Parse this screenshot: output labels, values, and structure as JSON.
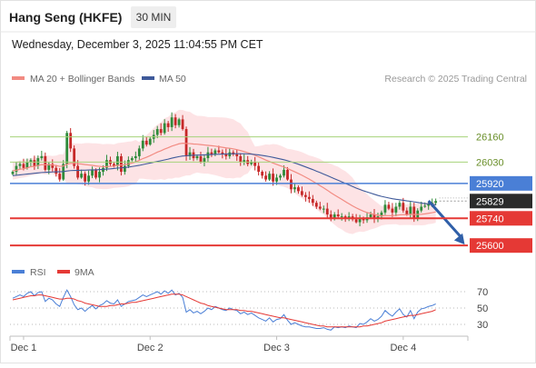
{
  "header": {
    "title": "Hang Seng (HKFE)",
    "interval": "30 MIN",
    "datetime": "Wednesday, December 3, 2025 11:04:55 PM CET"
  },
  "legend": {
    "ma20": "MA 20 + Bollinger Bands",
    "ma50": "MA 50",
    "rsi": "RSI",
    "rsi_ma": "9MA"
  },
  "copyright": "Research © 2025 Trading Central",
  "colors": {
    "ma20": "#f28b82",
    "ma50": "#3f5a9a",
    "bollinger": "#fde0e2",
    "candle_up": "#2e8b3a",
    "candle_down": "#c62828",
    "support": "#e53935",
    "resistance": "#4a7fd6",
    "target": "#f0f3a6",
    "rsi": "#4a7fd6",
    "rsi_ma": "#e53935",
    "arrow": "#2f5fa8"
  },
  "chart_data": {
    "type": "candlestick",
    "title": "Hang Seng (HKFE)",
    "interval": "30 MIN",
    "ylim": [
      25540,
      26350
    ],
    "x_labels": [
      "Dec 1",
      "Dec 2",
      "Dec 3",
      "Dec 4"
    ],
    "x_label_bars": [
      3,
      38,
      73,
      108
    ],
    "bars_total": 118,
    "levels": [
      {
        "label": "26160",
        "value": 26160,
        "kind": "resistance-green"
      },
      {
        "label": "26030",
        "value": 26030,
        "kind": "resistance-green"
      },
      {
        "label": "25920",
        "value": 25920,
        "kind": "pivot"
      },
      {
        "label": "25829",
        "value": 25829,
        "kind": "last"
      },
      {
        "label": "25740",
        "value": 25740,
        "kind": "support"
      },
      {
        "label": "25600",
        "value": 25600,
        "kind": "support"
      }
    ],
    "last_price": 25829,
    "forecast_arrow": {
      "from_bar": 115,
      "from_value": 25830,
      "to_bar": 125,
      "to_value": 25605
    },
    "closes": [
      25980,
      26010,
      26020,
      26000,
      26030,
      26040,
      26010,
      26050,
      26060,
      25990,
      26020,
      26000,
      25970,
      25940,
      26020,
      26180,
      26100,
      26010,
      25950,
      25970,
      25930,
      25960,
      25990,
      25950,
      25980,
      26000,
      26040,
      26020,
      26010,
      26060,
      25980,
      26010,
      26040,
      26050,
      26060,
      26100,
      26140,
      26120,
      26150,
      26170,
      26200,
      26180,
      26230,
      26210,
      26260,
      26220,
      26250,
      26200,
      26060,
      26080,
      26050,
      26060,
      26030,
      26050,
      26080,
      26070,
      26090,
      26080,
      26070,
      26060,
      26080,
      26070,
      26060,
      26030,
      26040,
      26020,
      26030,
      26010,
      25980,
      25960,
      25940,
      25970,
      25930,
      25950,
      25960,
      25990,
      25940,
      25890,
      25900,
      25880,
      25860,
      25850,
      25840,
      25820,
      25800,
      25790,
      25790,
      25760,
      25740,
      25760,
      25750,
      25750,
      25740,
      25750,
      25735,
      25720,
      25740,
      25730,
      25745,
      25760,
      25740,
      25750,
      25770,
      25810,
      25790,
      25770,
      25800,
      25820,
      25780,
      25760,
      25800,
      25740,
      25780,
      25800,
      25805,
      25815,
      25820,
      25829
    ],
    "ma20": [
      25985,
      25988,
      25993,
      25995,
      26000,
      26006,
      26008,
      26012,
      26017,
      26016,
      26016,
      26015,
      26012,
      26008,
      26009,
      26019,
      26023,
      26023,
      26021,
      26020,
      26017,
      26015,
      26013,
      26010,
      26008,
      26006,
      26007,
      26008,
      26009,
      26013,
      26015,
      26017,
      26020,
      26025,
      26030,
      26039,
      26048,
      26055,
      26063,
      26072,
      26081,
      26088,
      26097,
      26104,
      26112,
      26118,
      26124,
      26127,
      26126,
      26125,
      26123,
      26122,
      26120,
      26118,
      26116,
      26114,
      26112,
      26109,
      26106,
      26103,
      26101,
      26098,
      26094,
      26089,
      26084,
      26078,
      26072,
      26065,
      26057,
      26049,
      26040,
      26033,
      26025,
      26018,
      26011,
      26005,
      25997,
      25988,
      25980,
      25971,
      25962,
      25952,
      25942,
      25931,
      25920,
      25908,
      25897,
      25885,
      25872,
      25860,
      25849,
      25838,
      25826,
      25815,
      25804,
      25794,
      25785,
      25777,
      25770,
      25765,
      25760,
      25756,
      25753,
      25754,
      25754,
      25754,
      25755,
      25758,
      25759,
      25759,
      25761,
      25760,
      25760,
      25761,
      25763,
      25766,
      25769,
      25773
    ],
    "ma50": [
      25960,
      25962,
      25964,
      25966,
      25968,
      25970,
      25972,
      25974,
      25976,
      25977,
      25978,
      25979,
      25980,
      25980,
      25981,
      25984,
      25986,
      25987,
      25987,
      25988,
      25988,
      25989,
      25990,
      25990,
      25991,
      25992,
      25994,
      25995,
      25997,
      25999,
      26000,
      26002,
      26004,
      26007,
      26010,
      26013,
      26017,
      26021,
      26025,
      26029,
      26033,
      26037,
      26041,
      26045,
      26050,
      26054,
      26058,
      26061,
      26062,
      26064,
      26065,
      26066,
      26066,
      26067,
      26068,
      26069,
      26070,
      26070,
      26071,
      26072,
      26072,
      26073,
      26073,
      26073,
      26073,
      26072,
      26071,
      26069,
      26067,
      26064,
      26061,
      26058,
      26054,
      26050,
      26046,
      26042,
      26037,
      26031,
      26025,
      26019,
      26012,
      26005,
      25998,
      25991,
      25983,
      25976,
      25968,
      25960,
      25952,
      25944,
      25936,
      25928,
      25920,
      25912,
      25904,
      25896,
      25889,
      25882,
      25876,
      25870,
      25864,
      25858,
      25853,
      25849,
      25845,
      25841,
      25838,
      25836,
      25833,
      25830,
      25828,
      25825,
      25822,
      25819,
      25816,
      25814,
      25812,
      25810
    ],
    "rsi_ylim": [
      20,
      80
    ],
    "rsi_ticks": [
      70,
      50,
      30
    ],
    "rsi": [
      62,
      64,
      66,
      64,
      68,
      70,
      65,
      69,
      70,
      58,
      62,
      60,
      55,
      52,
      63,
      72,
      64,
      54,
      48,
      50,
      46,
      50,
      53,
      49,
      53,
      55,
      59,
      56,
      55,
      60,
      52,
      55,
      58,
      59,
      60,
      63,
      66,
      64,
      66,
      68,
      70,
      67,
      71,
      68,
      72,
      66,
      68,
      63,
      45,
      48,
      44,
      46,
      43,
      46,
      50,
      48,
      52,
      50,
      48,
      47,
      50,
      48,
      47,
      43,
      45,
      42,
      44,
      41,
      38,
      36,
      34,
      38,
      33,
      36,
      37,
      42,
      35,
      30,
      32,
      30,
      28,
      27,
      27,
      26,
      25,
      25,
      26,
      24,
      23,
      27,
      26,
      27,
      26,
      28,
      27,
      26,
      31,
      30,
      33,
      37,
      34,
      36,
      40,
      47,
      43,
      40,
      45,
      49,
      42,
      39,
      47,
      37,
      45,
      49,
      50,
      52,
      53,
      55
    ],
    "rsi_ma": [
      60,
      61,
      62,
      63,
      64,
      65,
      65,
      66,
      66,
      65,
      64,
      63,
      62,
      61,
      61,
      62,
      62,
      61,
      59,
      58,
      56,
      55,
      54,
      53,
      52,
      52,
      52,
      53,
      53,
      54,
      55,
      55,
      56,
      57,
      57,
      58,
      59,
      60,
      61,
      62,
      63,
      64,
      65,
      66,
      67,
      67,
      67,
      66,
      64,
      62,
      60,
      58,
      56,
      55,
      53,
      52,
      51,
      50,
      49,
      48,
      48,
      48,
      48,
      47,
      47,
      46,
      46,
      45,
      44,
      43,
      42,
      41,
      40,
      39,
      38,
      38,
      37,
      36,
      35,
      34,
      33,
      32,
      31,
      30,
      29,
      28,
      28,
      27,
      27,
      27,
      27,
      27,
      27,
      27,
      27,
      27,
      27,
      28,
      28,
      29,
      30,
      31,
      32,
      34,
      35,
      36,
      37,
      38,
      39,
      40,
      41,
      41,
      42,
      43,
      44,
      45,
      46,
      48
    ]
  }
}
